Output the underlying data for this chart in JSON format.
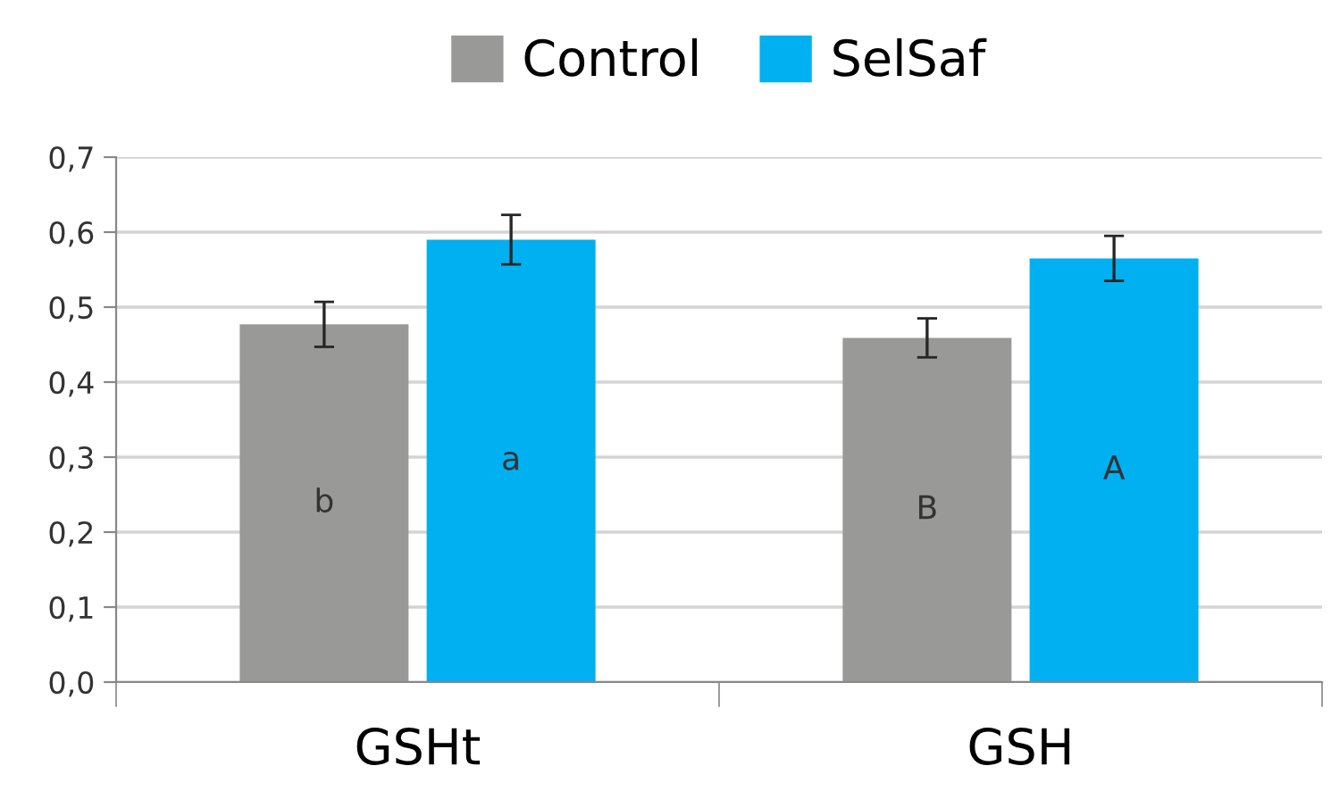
{
  "chart_data": {
    "type": "bar",
    "categories": [
      "GSHt",
      "GSH"
    ],
    "series": [
      {
        "name": "Control",
        "color": "#999a98",
        "values": [
          0.477,
          0.459
        ],
        "errors": [
          0.03,
          0.026
        ],
        "value_labels": [
          "b",
          "B"
        ]
      },
      {
        "name": "SelSaf",
        "color": "#00b0f0",
        "values": [
          0.59,
          0.565
        ],
        "errors": [
          0.033,
          0.03
        ],
        "value_labels": [
          "a",
          "A"
        ]
      }
    ],
    "ylim": [
      0,
      0.7
    ],
    "yticks": [
      {
        "value": 0,
        "label": "0,0"
      },
      {
        "value": 0.1,
        "label": "0,1"
      },
      {
        "value": 0.2,
        "label": "0,2"
      },
      {
        "value": 0.3,
        "label": "0,3"
      },
      {
        "value": 0.4,
        "label": "0,4"
      },
      {
        "value": 0.5,
        "label": "0,5"
      },
      {
        "value": 0.6,
        "label": "0,6"
      },
      {
        "value": 0.7,
        "label": "0,7"
      }
    ],
    "grid": "y",
    "legend": "top"
  }
}
